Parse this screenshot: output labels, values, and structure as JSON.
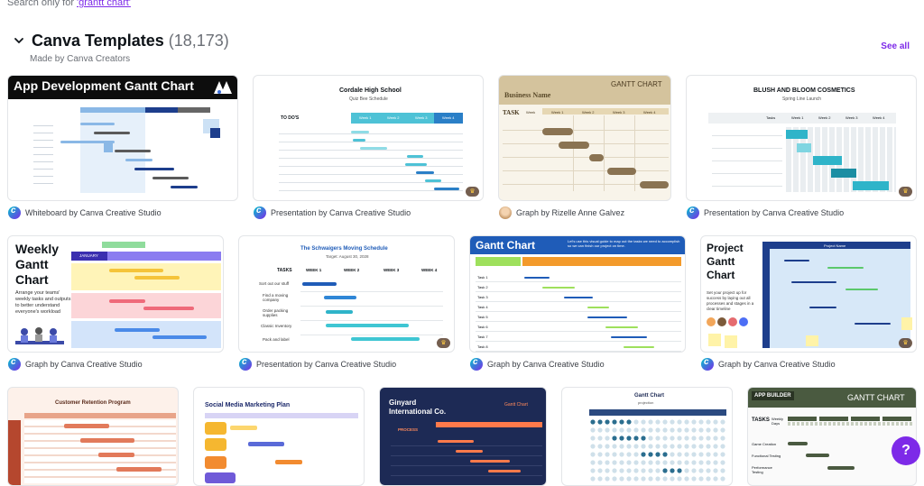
{
  "search": {
    "prefix": "Search only for ",
    "query": "'grantt chart'"
  },
  "section": {
    "title": "Canva Templates",
    "count": "(18,173)",
    "subtitle": "Made by Canva Creators",
    "see_all": "See all"
  },
  "templates": [
    {
      "type": "Whiteboard by Canva Creative Studio",
      "title": "App Development Gantt Chart"
    },
    {
      "type": "Presentation by Canva Creative Studio",
      "title": "Cordale High School",
      "subtitle": "Quiz Bee Schedule",
      "header": "TO DO'S",
      "cols": [
        "Week 1",
        "Week 2",
        "Week 3",
        "Week 4"
      ]
    },
    {
      "type": "Graph by Rizelle Anne Galvez",
      "title": "Business Name",
      "header": "GANTT CHART",
      "task_label": "TASK",
      "cols": [
        "Week",
        "Week 1",
        "Week 2",
        "Week 3",
        "Week 4"
      ]
    },
    {
      "type": "Presentation by Canva Creative Studio",
      "title": "BLUSH AND BLOOM COSMETICS",
      "subtitle": "Spring Line Launch",
      "task_label": "Tasks",
      "cols": [
        "Week 1",
        "Week 2",
        "Week 3",
        "Week 4"
      ]
    },
    {
      "type": "Graph by Canva Creative Studio",
      "title": "Weekly Gantt Chart",
      "body": "Arrange your teams' weekly tasks and outputs to better understand everyone's workload",
      "month": "JANUARY"
    },
    {
      "type": "Presentation by Canva Creative Studio",
      "title": "The Schwaigers Moving Schedule",
      "subtitle": "Target: August 30, 2028",
      "task_label": "TASKS",
      "cols": [
        "WEEK 1",
        "WEEK 2",
        "WEEK 3",
        "WEEK 4"
      ],
      "tasks": [
        "Sort out our stuff",
        "Find a moving company",
        "Order packing supplies",
        "Classic Inventory",
        "Pack and label"
      ]
    },
    {
      "type": "Graph by Canva Creative Studio",
      "title": "Gantt Chart",
      "body": "Let's use this visual guide to map out the tasks we need to accomplish so we can finish our project on time.",
      "tasks": [
        "Task 1",
        "Task 2",
        "Task 3",
        "Task 4",
        "Task 5",
        "Task 6",
        "Task 7",
        "Task 8"
      ]
    },
    {
      "type": "Graph by Canva Creative Studio",
      "title": "Project Gantt Chart",
      "body": "Set your project up for success by laying out all processes and stages in a clear timeline",
      "header": "Project Name"
    },
    {
      "title": "Customer Retention Program"
    },
    {
      "title": "Social Media Marketing Plan"
    },
    {
      "title": "Ginyard International Co.",
      "header": "Gantt Chart",
      "process": "PROCESS"
    },
    {
      "title": "Gantt Chart",
      "subtitle": "projection"
    },
    {
      "title": "GANTT CHART",
      "logo": "APP BUILDER",
      "task_label": "TASKS",
      "days_label": "Weekly Days",
      "tasks": [
        "Game Creation",
        "Functional Testing",
        "Performance Testing"
      ]
    }
  ],
  "help": {
    "label": "?"
  },
  "colors": {
    "accent": "#7d2ae8"
  }
}
